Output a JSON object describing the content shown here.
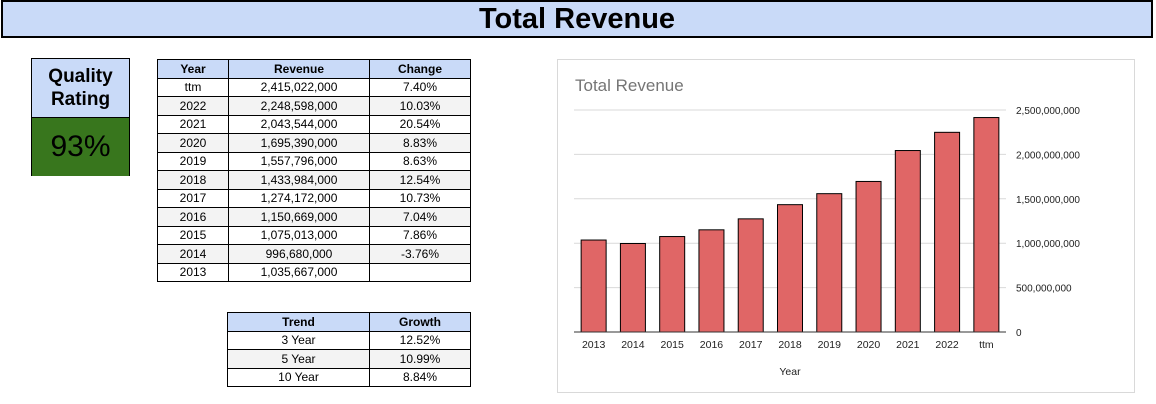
{
  "page_title": "Total Revenue",
  "quality": {
    "label_line1": "Quality",
    "label_line2": "Rating",
    "value": "93%",
    "color": "#38761d"
  },
  "revenue_table": {
    "headers": [
      "Year",
      "Revenue",
      "Change"
    ],
    "rows": [
      [
        "ttm",
        "2,415,022,000",
        "7.40%"
      ],
      [
        "2022",
        "2,248,598,000",
        "10.03%"
      ],
      [
        "2021",
        "2,043,544,000",
        "20.54%"
      ],
      [
        "2020",
        "1,695,390,000",
        "8.83%"
      ],
      [
        "2019",
        "1,557,796,000",
        "8.63%"
      ],
      [
        "2018",
        "1,433,984,000",
        "12.54%"
      ],
      [
        "2017",
        "1,274,172,000",
        "10.73%"
      ],
      [
        "2016",
        "1,150,669,000",
        "7.04%"
      ],
      [
        "2015",
        "1,075,013,000",
        "7.86%"
      ],
      [
        "2014",
        "996,680,000",
        "-3.76%"
      ],
      [
        "2013",
        "1,035,667,000",
        ""
      ]
    ]
  },
  "trend_table": {
    "headers": [
      "Trend",
      "Growth"
    ],
    "rows": [
      [
        "3 Year",
        "12.52%"
      ],
      [
        "5 Year",
        "10.99%"
      ],
      [
        "10 Year",
        "8.84%"
      ]
    ]
  },
  "chart_data": {
    "type": "bar",
    "title": "Total Revenue",
    "xlabel": "Year",
    "ylabel": "",
    "categories": [
      "2013",
      "2014",
      "2015",
      "2016",
      "2017",
      "2018",
      "2019",
      "2020",
      "2021",
      "2022",
      "ttm"
    ],
    "values": [
      1035667000,
      996680000,
      1075013000,
      1150669000,
      1274172000,
      1433984000,
      1557796000,
      1695390000,
      2043544000,
      2248598000,
      2415022000
    ],
    "ylim": [
      0,
      2500000000
    ],
    "yticks": [
      0,
      500000000,
      1000000000,
      1500000000,
      2000000000,
      2500000000
    ],
    "ytick_labels": [
      "0",
      "500,000,000",
      "1,000,000,000",
      "1,500,000,000",
      "2,000,000,000",
      "2,500,000,000"
    ],
    "y_axis_side": "right",
    "grid": true,
    "legend": "none",
    "bar_color": "#e06666",
    "bar_edge_color": "#000000"
  }
}
